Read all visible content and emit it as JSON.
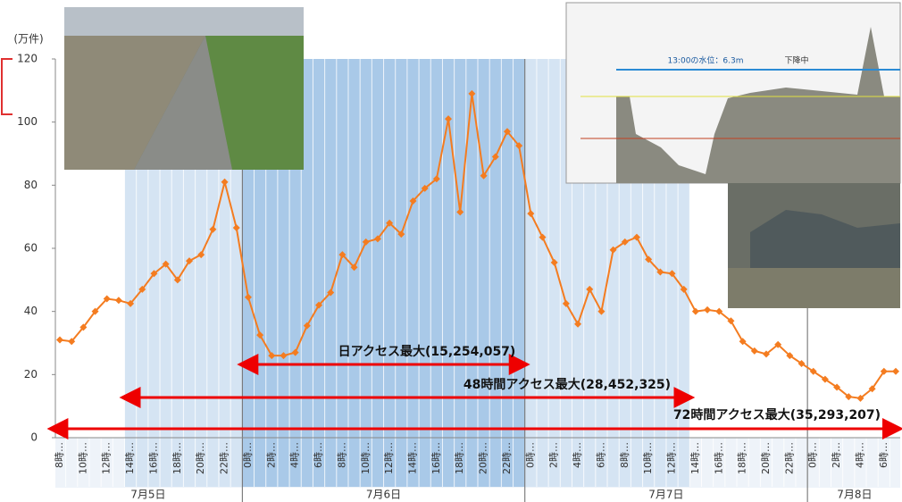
{
  "chart_data": {
    "type": "line",
    "y_label": "(万件)",
    "categories": [
      "8時…",
      null,
      "10時…",
      null,
      "12時…",
      null,
      "14時…",
      null,
      "16時…",
      null,
      "18時…",
      null,
      "20時…",
      null,
      "22時…",
      null,
      "0時…",
      null,
      "2時…",
      null,
      "4時…",
      null,
      "6時…",
      null,
      "8時…",
      null,
      "10時…",
      null,
      "12時…",
      null,
      "14時…",
      null,
      "16時…",
      null,
      "18時…",
      null,
      "20時…",
      null,
      "22時…",
      null,
      "0時…",
      null,
      "2時…",
      null,
      "4時…",
      null,
      "6時…",
      null,
      "8時…",
      null,
      "10時…",
      null,
      "12時…",
      null,
      "14時…",
      null,
      "16時…",
      null,
      "18時…",
      null,
      "20時…",
      null,
      "22時…",
      null,
      "0時…",
      null,
      "2時…",
      null,
      "4時…",
      null,
      "6時…",
      null
    ],
    "x_groups": [
      "7月5日",
      "7月6日",
      "7月7日",
      "7月8日"
    ],
    "series": [
      {
        "color": "#f47c20",
        "values": [
          31,
          30.5,
          35,
          40,
          44,
          43.5,
          42.5,
          47,
          52,
          55,
          50,
          56,
          58,
          66,
          81,
          66.5,
          44.5,
          32.5,
          26,
          26,
          27,
          35.5,
          42,
          46,
          58,
          54,
          62,
          63,
          68,
          64.5,
          75,
          79,
          82,
          101,
          71.5,
          109,
          83,
          89,
          97,
          92.5,
          71,
          63.5,
          55.5,
          42.5,
          36,
          47,
          40,
          59.5,
          62,
          63.5,
          56.5,
          52.5,
          52,
          47,
          40,
          40.5,
          40,
          37,
          30.5,
          27.5,
          26.5,
          29.5,
          26,
          23.5,
          21,
          18.5,
          16,
          13,
          12.5,
          15.5,
          21,
          21
        ]
      }
    ],
    "ylim": [
      0,
      120
    ],
    "yticks": [
      0,
      20,
      40,
      60,
      80,
      100,
      120
    ],
    "annotations": [
      "日アクセス最大(15,254,057)",
      "48時間アクセス最大(28,452,325)",
      "72時間アクセス最大(35,293,207)"
    ],
    "inset_texts": [
      "13:00の水位：6.3m",
      "下降中"
    ]
  }
}
